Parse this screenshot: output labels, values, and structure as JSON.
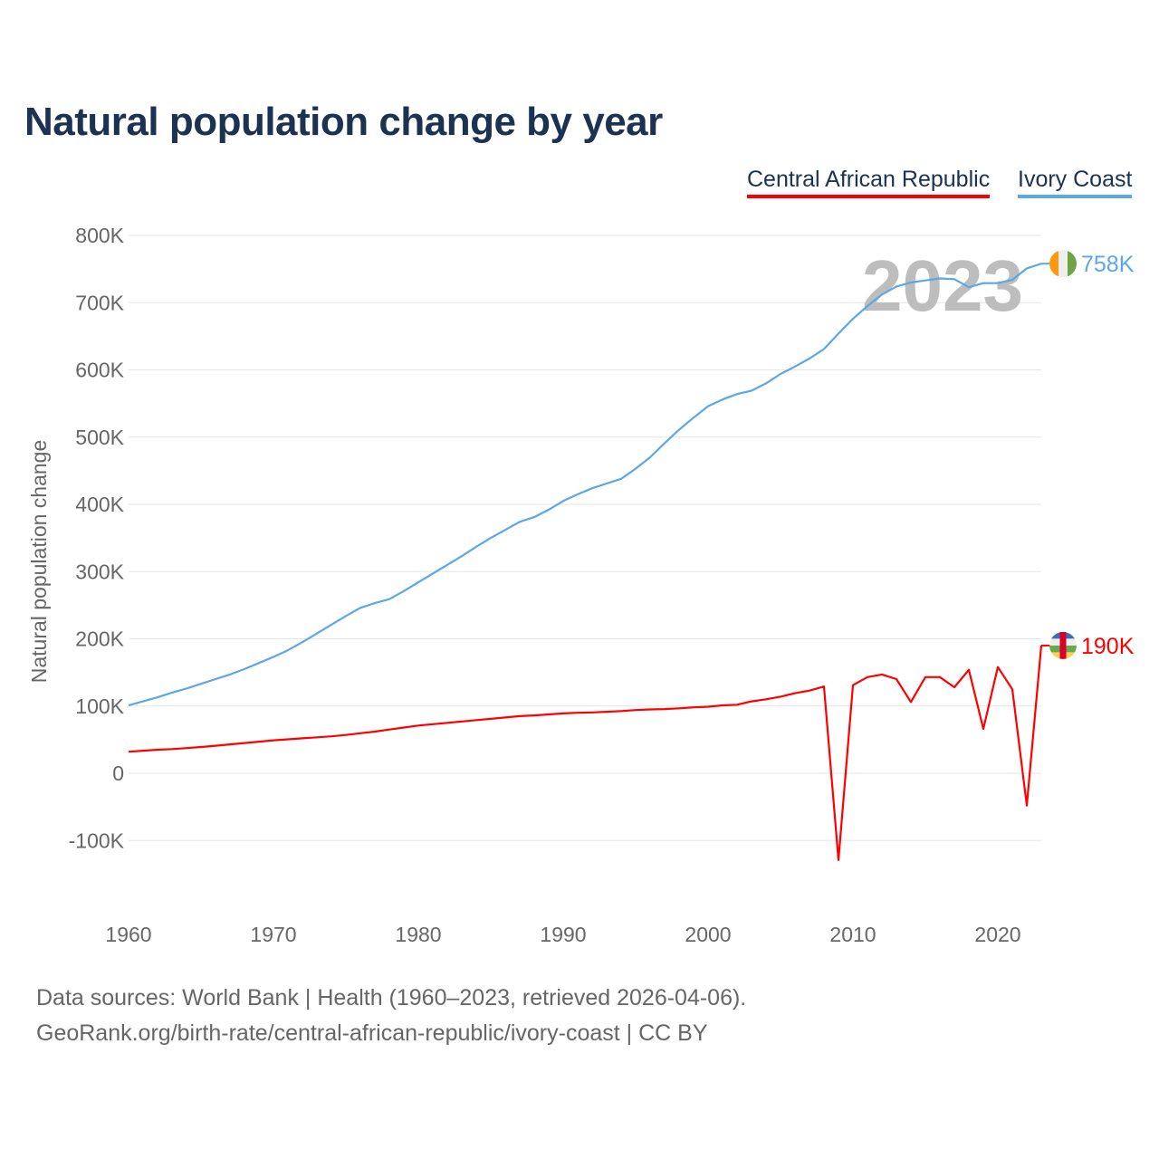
{
  "title": "Natural population change by year",
  "footer": {
    "line1": "Data sources: World Bank | Health (1960–2023, retrieved 2026-04-06).",
    "line2": "GeoRank.org/birth-rate/central-african-republic/ivory-coast | CC BY"
  },
  "chart_data": {
    "type": "line",
    "title": "Natural population change by year",
    "xlabel": "",
    "ylabel": "Natural population change",
    "year_watermark": "2023",
    "xlim": [
      1960,
      2023
    ],
    "ylim": [
      -170000,
      800000
    ],
    "x_ticks": [
      "1960",
      "1970",
      "1980",
      "1990",
      "2000",
      "2010",
      "2020"
    ],
    "y_ticks": [
      {
        "value": 800000,
        "label": "800K"
      },
      {
        "value": 700000,
        "label": "700K"
      },
      {
        "value": 600000,
        "label": "600K"
      },
      {
        "value": 500000,
        "label": "500K"
      },
      {
        "value": 400000,
        "label": "400K"
      },
      {
        "value": 300000,
        "label": "300K"
      },
      {
        "value": 200000,
        "label": "200K"
      },
      {
        "value": 100000,
        "label": "100K"
      },
      {
        "value": 0,
        "label": "0"
      },
      {
        "value": -100000,
        "label": "-100K"
      }
    ],
    "grid": true,
    "legend_position": "top-right",
    "x_start": 1960,
    "series": [
      {
        "name": "Central African Republic",
        "color": "#ff0000",
        "end_label": "190K",
        "unit": "thousands",
        "values": [
          32,
          33.5,
          35,
          36,
          37.5,
          39,
          41,
          43,
          45,
          47,
          49,
          50.5,
          52,
          53.5,
          55,
          57,
          59.5,
          62,
          65,
          68,
          71,
          73,
          75,
          77,
          79,
          81,
          83,
          85,
          86,
          87.5,
          89,
          90,
          90.5,
          91.5,
          92.5,
          94,
          95,
          95.5,
          96.5,
          98,
          99,
          101,
          102,
          107,
          110,
          114,
          119,
          123,
          129,
          -129,
          131,
          143,
          147,
          140,
          106,
          143,
          143,
          128,
          154,
          66,
          158,
          125,
          -48,
          190
        ]
      },
      {
        "name": "Ivory Coast",
        "color": "#5ca6ea",
        "end_label": "758K",
        "unit": "thousands",
        "values": [
          101,
          107,
          113,
          120,
          126,
          133,
          140,
          147,
          155,
          164,
          173,
          183,
          195,
          208,
          221,
          234,
          246,
          253,
          259,
          271,
          284,
          297,
          310,
          323,
          337,
          350,
          362,
          374,
          381,
          392,
          405,
          415,
          424,
          431,
          438,
          453,
          470,
          491,
          511,
          529,
          546,
          556,
          564,
          569,
          580,
          594,
          605,
          617,
          631,
          654,
          676,
          695,
          712,
          724,
          730,
          733,
          736,
          735,
          723,
          729,
          729,
          734,
          751,
          758
        ]
      }
    ]
  }
}
